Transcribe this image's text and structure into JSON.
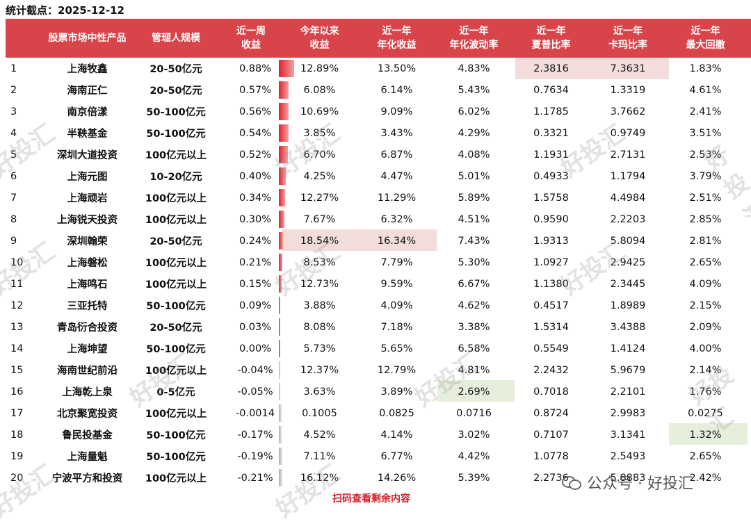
{
  "stat_date": "统计截点：2025-12-12",
  "headers": {
    "product": "股票市场中性产品",
    "scale": "管理人规模",
    "week": [
      "近一周",
      "收益"
    ],
    "ytd": [
      "今年以来",
      "收益"
    ],
    "ann_return": [
      "近一年",
      "年化收益"
    ],
    "ann_vol": [
      "近一年",
      "年化波动率"
    ],
    "sharpe": [
      "近一年",
      "夏普比率"
    ],
    "calmar": [
      "近一年",
      "卡玛比率"
    ],
    "max_dd": [
      "近一年",
      "最大回撤"
    ]
  },
  "rows": [
    {
      "idx": "1",
      "name": "上海牧鑫",
      "scale": "20-50亿元",
      "week": "0.88%",
      "week_value": 0.88,
      "ytd": "12.89%",
      "ann": "13.50%",
      "vol": "4.83%",
      "sharpe": "2.3816",
      "calmar": "7.3631",
      "dd": "1.83%"
    },
    {
      "idx": "2",
      "name": "海南正仁",
      "scale": "20-50亿元",
      "week": "0.57%",
      "week_value": 0.57,
      "ytd": "6.08%",
      "ann": "6.14%",
      "vol": "5.43%",
      "sharpe": "0.7634",
      "calmar": "1.3319",
      "dd": "4.61%"
    },
    {
      "idx": "3",
      "name": "南京倍漾",
      "scale": "50-100亿元",
      "week": "0.56%",
      "week_value": 0.56,
      "ytd": "10.69%",
      "ann": "9.09%",
      "vol": "6.02%",
      "sharpe": "1.1785",
      "calmar": "3.7662",
      "dd": "2.41%"
    },
    {
      "idx": "4",
      "name": "半鞅基金",
      "scale": "50-100亿元",
      "week": "0.54%",
      "week_value": 0.54,
      "ytd": "3.85%",
      "ann": "3.43%",
      "vol": "4.29%",
      "sharpe": "0.3321",
      "calmar": "0.9749",
      "dd": "3.51%"
    },
    {
      "idx": "5",
      "name": "深圳大道投资",
      "scale": "100亿元以上",
      "week": "0.52%",
      "week_value": 0.52,
      "ytd": "6.70%",
      "ann": "6.87%",
      "vol": "4.08%",
      "sharpe": "1.1931",
      "calmar": "2.7131",
      "dd": "2.53%"
    },
    {
      "idx": "6",
      "name": "上海元图",
      "scale": "10-20亿元",
      "week": "0.40%",
      "week_value": 0.4,
      "ytd": "4.25%",
      "ann": "4.47%",
      "vol": "5.01%",
      "sharpe": "0.4933",
      "calmar": "1.1794",
      "dd": "3.79%"
    },
    {
      "idx": "7",
      "name": "上海顽岩",
      "scale": "100亿元以上",
      "week": "0.34%",
      "week_value": 0.34,
      "ytd": "12.27%",
      "ann": "11.29%",
      "vol": "5.89%",
      "sharpe": "1.5758",
      "calmar": "4.4984",
      "dd": "2.51%"
    },
    {
      "idx": "8",
      "name": "上海锐天投资",
      "scale": "100亿元以上",
      "week": "0.30%",
      "week_value": 0.3,
      "ytd": "7.67%",
      "ann": "6.32%",
      "vol": "4.51%",
      "sharpe": "0.9590",
      "calmar": "2.2203",
      "dd": "2.85%"
    },
    {
      "idx": "9",
      "name": "深圳翰荣",
      "scale": "20-50亿元",
      "week": "0.24%",
      "week_value": 0.24,
      "ytd": "18.54%",
      "ann": "16.34%",
      "vol": "7.43%",
      "sharpe": "1.9313",
      "calmar": "5.8094",
      "dd": "2.81%"
    },
    {
      "idx": "10",
      "name": "上海磐松",
      "scale": "100亿元以上",
      "week": "0.21%",
      "week_value": 0.21,
      "ytd": "8.53%",
      "ann": "7.79%",
      "vol": "5.30%",
      "sharpe": "1.0927",
      "calmar": "2.9425",
      "dd": "2.65%"
    },
    {
      "idx": "11",
      "name": "上海鸣石",
      "scale": "100亿元以上",
      "week": "0.15%",
      "week_value": 0.15,
      "ytd": "12.73%",
      "ann": "9.59%",
      "vol": "6.67%",
      "sharpe": "1.1380",
      "calmar": "2.3445",
      "dd": "4.09%"
    },
    {
      "idx": "12",
      "name": "三亚托特",
      "scale": "50-100亿元",
      "week": "0.09%",
      "week_value": 0.09,
      "ytd": "3.88%",
      "ann": "4.09%",
      "vol": "4.62%",
      "sharpe": "0.4517",
      "calmar": "1.8989",
      "dd": "2.15%"
    },
    {
      "idx": "13",
      "name": "青岛衍合投资",
      "scale": "20-50亿元",
      "week": "0.03%",
      "week_value": 0.03,
      "ytd": "8.08%",
      "ann": "7.18%",
      "vol": "3.38%",
      "sharpe": "1.5314",
      "calmar": "3.4388",
      "dd": "2.09%"
    },
    {
      "idx": "14",
      "name": "上海坤望",
      "scale": "50-100亿元",
      "week": "0.00%",
      "week_value": 0.0,
      "ytd": "5.73%",
      "ann": "5.65%",
      "vol": "6.58%",
      "sharpe": "0.5549",
      "calmar": "1.4124",
      "dd": "4.00%"
    },
    {
      "idx": "15",
      "name": "海南世纪前沿",
      "scale": "100亿元以上",
      "week": "-0.04%",
      "week_value": -0.04,
      "ytd": "12.37%",
      "ann": "12.79%",
      "vol": "4.81%",
      "sharpe": "2.2432",
      "calmar": "5.9679",
      "dd": "2.14%"
    },
    {
      "idx": "16",
      "name": "上海乾上泉",
      "scale": "0-5亿元",
      "week": "-0.05%",
      "week_value": -0.05,
      "ytd": "3.63%",
      "ann": "3.89%",
      "vol": "2.69%",
      "sharpe": "0.7018",
      "calmar": "2.2101",
      "dd": "1.76%"
    },
    {
      "idx": "17",
      "name": "北京聚宽投资",
      "scale": "100亿元以上",
      "week": "-0.0014",
      "week_value": -0.14,
      "ytd": "0.1005",
      "ann": "0.0825",
      "vol": "0.0716",
      "sharpe": "0.8724",
      "calmar": "2.9983",
      "dd": "0.0275"
    },
    {
      "idx": "18",
      "name": "鲁民投基金",
      "scale": "50-100亿元",
      "week": "-0.17%",
      "week_value": -0.17,
      "ytd": "4.52%",
      "ann": "4.14%",
      "vol": "3.02%",
      "sharpe": "0.7107",
      "calmar": "3.1341",
      "dd": "1.32%"
    },
    {
      "idx": "19",
      "name": "上海量魁",
      "scale": "50-100亿元",
      "week": "-0.19%",
      "week_value": -0.19,
      "ytd": "7.11%",
      "ann": "6.77%",
      "vol": "4.42%",
      "sharpe": "1.0778",
      "calmar": "2.5493",
      "dd": "2.65%"
    },
    {
      "idx": "20",
      "name": "宁波平方和投资",
      "scale": "100亿元以上",
      "week": "-0.21%",
      "week_value": -0.21,
      "ytd": "16.12%",
      "ann": "14.26%",
      "vol": "5.39%",
      "sharpe": "2.2736",
      "calmar": "5.8883",
      "dd": "2.42%"
    }
  ],
  "footer_note": "扫码查看剩余内容",
  "brand_text": "公众号 · 好投汇",
  "watermark_text": "好投汇",
  "colors": {
    "header_bg": "#d9444a",
    "highlight_max": "#f2dcdc",
    "highlight_min": "#e6efdc",
    "bar_pos": "#e0222b",
    "bar_neg": "#b0b0b0",
    "footer": "#d0202a"
  }
}
